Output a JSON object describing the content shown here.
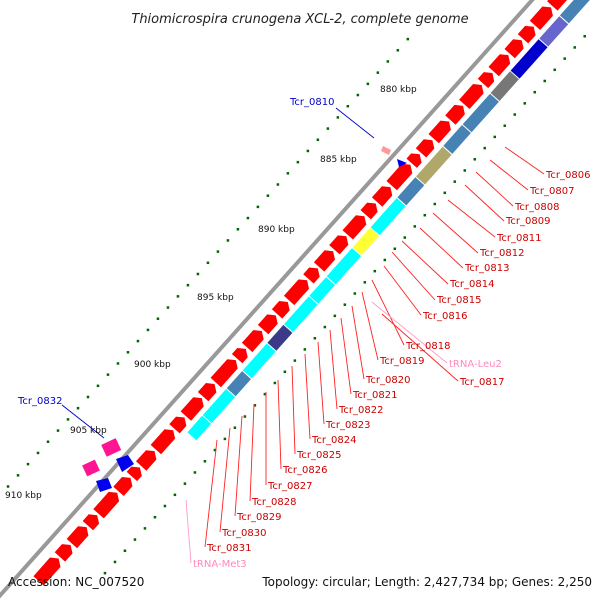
{
  "title": "Thiomicrospira crunogena XCL-2, complete genome",
  "accession": "Accession: NC_007520",
  "topology": "Topology: circular; Length: 2,427,734 bp; Genes: 2,250",
  "colors": {
    "gene_forward": "#ff0000",
    "gene_reverse": "#0000ee",
    "trna": "#ff99cc",
    "backbone": "#999999",
    "cog_cyan": "#00ffff",
    "cog_steel": "#4682b4",
    "label_red": "#cc0000",
    "label_blue": "#0000cc",
    "label_pink": "#ff88bb",
    "gc_tick": "#006600"
  },
  "kbp_labels": [
    "880 kbp",
    "885 kbp",
    "890 kbp",
    "895 kbp",
    "900 kbp",
    "905 kbp",
    "910 kbp"
  ],
  "gene_labels_right": [
    "Tcr_0806",
    "Tcr_0807",
    "Tcr_0808",
    "Tcr_0809",
    "Tcr_0811",
    "Tcr_0812",
    "Tcr_0813",
    "Tcr_0814",
    "Tcr_0815",
    "Tcr_0816",
    "Tcr_0818",
    "Tcr_0819",
    "Tcr_0820",
    "Tcr_0821",
    "Tcr_0822",
    "Tcr_0823",
    "Tcr_0824",
    "Tcr_0825",
    "Tcr_0826",
    "Tcr_0827",
    "Tcr_0828",
    "Tcr_0829",
    "Tcr_0830",
    "Tcr_0831"
  ],
  "gene_labels_extra": {
    "trna_leu": "tRNA-Leu2",
    "t0817": "Tcr_0817",
    "trna_met": "tRNA-Met3"
  },
  "gene_labels_left": {
    "t0810": "Tcr_0810",
    "t0832": "Tcr_0832"
  }
}
